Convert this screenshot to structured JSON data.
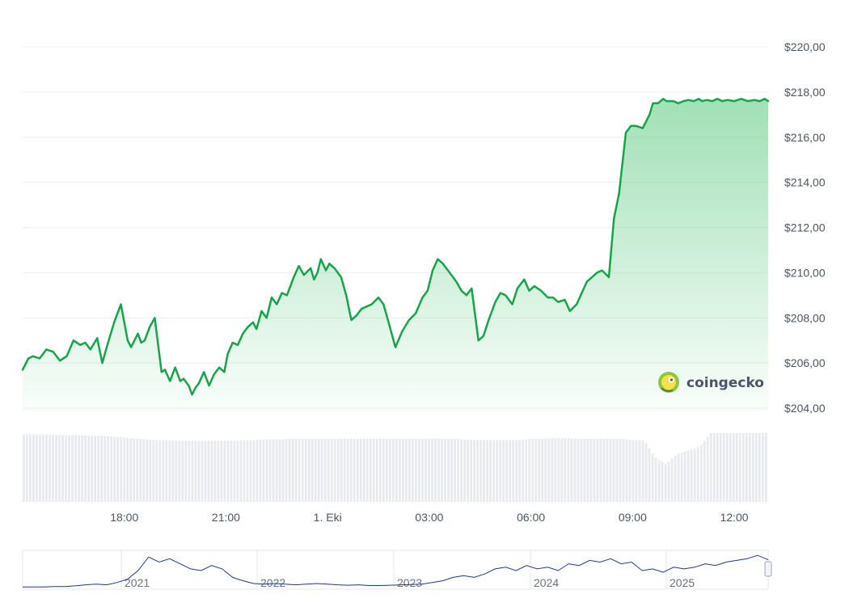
{
  "chart_data": {
    "type": "area",
    "currency_format": "$###,##",
    "y_ticks": [
      "$220,00",
      "$218,00",
      "$216,00",
      "$214,00",
      "$212,00",
      "$210,00",
      "$208,00",
      "$206,00",
      "$204,00"
    ],
    "ylim": [
      204,
      220
    ],
    "x_ticks": [
      "18:00",
      "21:00",
      "1. Eki",
      "03:00",
      "06:00",
      "09:00",
      "12:00"
    ],
    "x_range_hours": [
      15.0,
      37.0
    ],
    "x_tick_hours": [
      18,
      21,
      24,
      27,
      30,
      33,
      36
    ],
    "grid": true,
    "line_color": "#16a34a",
    "fill_color": "#86dba0",
    "price_series": {
      "name": "",
      "x_hours": [
        15.0,
        15.17,
        15.3,
        15.5,
        15.7,
        15.9,
        16.1,
        16.3,
        16.5,
        16.7,
        16.85,
        17.0,
        17.2,
        17.35,
        17.5,
        17.7,
        17.9,
        18.1,
        18.2,
        18.4,
        18.5,
        18.6,
        18.75,
        18.9,
        19.0,
        19.1,
        19.2,
        19.35,
        19.5,
        19.65,
        19.75,
        19.9,
        20.0,
        20.1,
        20.2,
        20.35,
        20.5,
        20.65,
        20.8,
        20.95,
        21.05,
        21.2,
        21.35,
        21.5,
        21.65,
        21.8,
        21.9,
        22.05,
        22.2,
        22.35,
        22.5,
        22.65,
        22.8,
        23.0,
        23.15,
        23.3,
        23.5,
        23.6,
        23.7,
        23.8,
        23.95,
        24.05,
        24.2,
        24.4,
        24.55,
        24.7,
        24.85,
        25.0,
        25.15,
        25.3,
        25.5,
        25.65,
        25.8,
        26.0,
        26.2,
        26.4,
        26.6,
        26.8,
        26.95,
        27.1,
        27.25,
        27.4,
        27.6,
        27.8,
        27.95,
        28.1,
        28.25,
        28.45,
        28.6,
        28.75,
        28.95,
        29.1,
        29.25,
        29.45,
        29.6,
        29.8,
        29.95,
        30.1,
        30.3,
        30.5,
        30.65,
        30.8,
        31.0,
        31.15,
        31.35,
        31.5,
        31.65,
        31.8,
        31.95,
        32.1,
        32.3,
        32.45,
        32.6,
        32.8,
        32.95,
        33.1,
        33.3,
        33.5,
        33.6,
        33.75,
        33.9,
        34.0,
        34.2,
        34.35,
        34.5,
        34.65,
        34.8,
        34.95,
        35.05,
        35.2,
        35.35,
        35.5,
        35.65,
        35.8,
        36.0,
        36.2,
        36.4,
        36.6,
        36.75,
        36.9,
        37.0
      ],
      "values": [
        205.7,
        206.2,
        206.3,
        206.2,
        206.6,
        206.5,
        206.1,
        206.3,
        207.0,
        206.8,
        206.9,
        206.6,
        207.1,
        206.0,
        206.8,
        207.8,
        208.6,
        207.0,
        206.7,
        207.3,
        206.9,
        207.0,
        207.6,
        208.0,
        206.8,
        205.6,
        205.7,
        205.2,
        205.8,
        205.2,
        205.3,
        205.0,
        204.6,
        204.9,
        205.1,
        205.6,
        205.0,
        205.5,
        205.8,
        205.6,
        206.4,
        206.9,
        206.8,
        207.3,
        207.6,
        207.8,
        207.5,
        208.3,
        208.0,
        208.9,
        208.6,
        209.1,
        209.0,
        209.8,
        210.3,
        209.9,
        210.2,
        209.7,
        210.0,
        210.6,
        210.1,
        210.4,
        210.2,
        209.8,
        209.0,
        207.9,
        208.1,
        208.4,
        208.5,
        208.6,
        208.9,
        208.6,
        207.8,
        206.7,
        207.4,
        207.9,
        208.2,
        208.9,
        209.2,
        210.1,
        210.6,
        210.4,
        210.0,
        209.6,
        209.2,
        209.0,
        209.3,
        207.0,
        207.2,
        207.9,
        208.7,
        209.1,
        209.0,
        208.6,
        209.3,
        209.7,
        209.2,
        209.4,
        209.2,
        208.9,
        208.9,
        208.7,
        208.8,
        208.3,
        208.6,
        209.1,
        209.6,
        209.8,
        210.0,
        210.1,
        209.8,
        212.4,
        213.5,
        216.2,
        216.5,
        216.5,
        216.4,
        217.0,
        217.5,
        217.5,
        217.7,
        217.6,
        217.6,
        217.5,
        217.6,
        217.65,
        217.6,
        217.7,
        217.6,
        217.65,
        217.6,
        217.7,
        217.6,
        217.65,
        217.6,
        217.7,
        217.6,
        217.65,
        217.6,
        217.7,
        217.6
      ]
    },
    "volume_series": {
      "name": "",
      "relative_values": [
        0.98,
        0.98,
        0.98,
        0.97,
        0.97,
        0.97,
        0.96,
        0.96,
        0.95,
        0.94,
        0.92,
        0.91,
        0.9,
        0.9,
        0.89,
        0.89,
        0.89,
        0.89,
        0.89,
        0.89,
        0.9,
        0.9,
        0.91,
        0.91,
        0.92,
        0.92,
        0.92,
        0.92,
        0.92,
        0.92,
        0.92,
        0.92,
        0.92,
        0.92,
        0.92,
        0.92,
        0.92,
        0.92,
        0.92,
        0.92,
        0.9,
        0.9,
        0.9,
        0.9,
        0.9,
        0.9,
        0.92,
        0.92,
        0.93,
        0.93,
        0.92,
        0.92,
        0.92,
        0.92,
        0.92,
        0.9,
        0.9,
        0.65,
        0.55,
        0.7,
        0.75,
        0.8,
        1.0,
        1.0,
        1.0,
        1.0,
        1.0,
        1.0
      ]
    },
    "overview": {
      "labels": [
        "2021",
        "2022",
        "2023",
        "2024",
        "2025"
      ],
      "line_color": "#1e3a8a",
      "relative_values": [
        0.02,
        0.02,
        0.02,
        0.03,
        0.03,
        0.05,
        0.08,
        0.1,
        0.08,
        0.15,
        0.25,
        0.5,
        0.9,
        0.75,
        0.85,
        0.7,
        0.55,
        0.5,
        0.65,
        0.55,
        0.3,
        0.2,
        0.12,
        0.1,
        0.12,
        0.1,
        0.08,
        0.1,
        0.12,
        0.1,
        0.08,
        0.07,
        0.08,
        0.06,
        0.06,
        0.07,
        0.08,
        0.09,
        0.1,
        0.15,
        0.2,
        0.3,
        0.35,
        0.3,
        0.4,
        0.55,
        0.6,
        0.5,
        0.65,
        0.55,
        0.6,
        0.5,
        0.7,
        0.65,
        0.8,
        0.75,
        0.85,
        0.7,
        0.75,
        0.5,
        0.55,
        0.45,
        0.6,
        0.55,
        0.6,
        0.7,
        0.65,
        0.75,
        0.8,
        0.85,
        0.95,
        0.82
      ]
    }
  },
  "brand": {
    "name": "coingecko"
  }
}
